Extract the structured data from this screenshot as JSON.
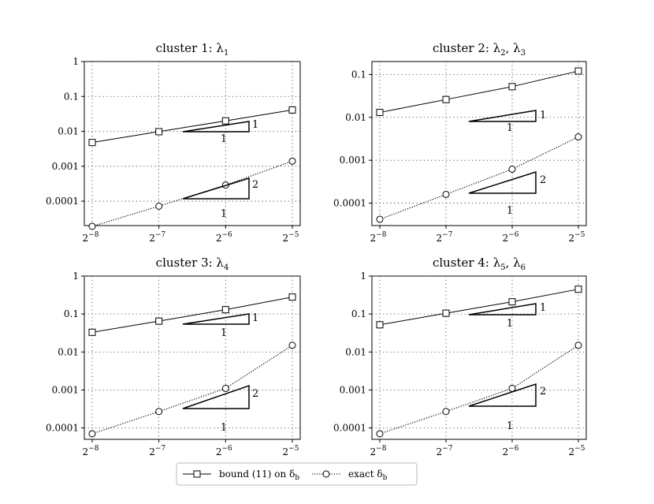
{
  "chart_data": [
    {
      "type": "line",
      "title": "cluster 1: λ",
      "title_sub": "1",
      "xscale": "log2",
      "yscale": "log",
      "x": [
        0.00390625,
        0.0078125,
        0.015625,
        0.03125
      ],
      "x_tick_labels": [
        {
          "base": "2",
          "exp": "−8"
        },
        {
          "base": "2",
          "exp": "−7"
        },
        {
          "base": "2",
          "exp": "−6"
        },
        {
          "base": "2",
          "exp": "−5"
        }
      ],
      "y_ticks": [
        0.0001,
        0.001,
        0.01,
        0.1,
        1
      ],
      "y_tick_labels": [
        "0.0001",
        "0.001",
        "0.01",
        "0.1",
        "1"
      ],
      "ylim": [
        2e-05,
        1
      ],
      "grid": true,
      "series": [
        {
          "values": [
            0.0048,
            0.0098,
            0.02,
            0.041
          ],
          "marker": "square",
          "style": "solid"
        },
        {
          "values": [
            1.9e-05,
            7.2e-05,
            0.00029,
            0.0014
          ],
          "marker": "circle",
          "style": "dotted"
        }
      ],
      "slope_triangles": [
        {
          "slope_label": "1",
          "run_label": "1"
        },
        {
          "slope_label": "2",
          "run_label": "1"
        }
      ]
    },
    {
      "type": "line",
      "title": "cluster 2: λ",
      "title_sub": "2",
      "title_tail": ", λ",
      "title_sub2": "3",
      "xscale": "log2",
      "yscale": "log",
      "x": [
        0.00390625,
        0.0078125,
        0.015625,
        0.03125
      ],
      "x_tick_labels": [
        {
          "base": "2",
          "exp": "−8"
        },
        {
          "base": "2",
          "exp": "−7"
        },
        {
          "base": "2",
          "exp": "−6"
        },
        {
          "base": "2",
          "exp": "−5"
        }
      ],
      "y_ticks": [
        0.0001,
        0.001,
        0.01,
        0.1
      ],
      "y_tick_labels": [
        "0.0001",
        "0.001",
        "0.01",
        "0.1"
      ],
      "ylim": [
        3e-05,
        0.2
      ],
      "grid": true,
      "series": [
        {
          "values": [
            0.013,
            0.026,
            0.052,
            0.12
          ],
          "marker": "square",
          "style": "solid"
        },
        {
          "values": [
            4.2e-05,
            0.00016,
            0.00062,
            0.0035
          ],
          "marker": "circle",
          "style": "dotted"
        }
      ],
      "slope_triangles": [
        {
          "slope_label": "1",
          "run_label": "1"
        },
        {
          "slope_label": "2",
          "run_label": "1"
        }
      ]
    },
    {
      "type": "line",
      "title": "cluster 3: λ",
      "title_sub": "4",
      "xscale": "log2",
      "yscale": "log",
      "x": [
        0.00390625,
        0.0078125,
        0.015625,
        0.03125
      ],
      "x_tick_labels": [
        {
          "base": "2",
          "exp": "−8"
        },
        {
          "base": "2",
          "exp": "−7"
        },
        {
          "base": "2",
          "exp": "−6"
        },
        {
          "base": "2",
          "exp": "−5"
        }
      ],
      "y_ticks": [
        0.0001,
        0.001,
        0.01,
        0.1,
        1
      ],
      "y_tick_labels": [
        "0.0001",
        "0.001",
        "0.01",
        "0.1",
        "1"
      ],
      "ylim": [
        5e-05,
        1
      ],
      "grid": true,
      "series": [
        {
          "values": [
            0.033,
            0.065,
            0.13,
            0.28
          ],
          "marker": "square",
          "style": "solid"
        },
        {
          "values": [
            7e-05,
            0.00027,
            0.0011,
            0.015
          ],
          "marker": "circle",
          "style": "dotted"
        }
      ],
      "slope_triangles": [
        {
          "slope_label": "1",
          "run_label": "1"
        },
        {
          "slope_label": "2",
          "run_label": "1"
        }
      ]
    },
    {
      "type": "line",
      "title": "cluster 4: λ",
      "title_sub": "5",
      "title_tail": ", λ",
      "title_sub2": "6",
      "xscale": "log2",
      "yscale": "log",
      "x": [
        0.00390625,
        0.0078125,
        0.015625,
        0.03125
      ],
      "x_tick_labels": [
        {
          "base": "2",
          "exp": "−8"
        },
        {
          "base": "2",
          "exp": "−7"
        },
        {
          "base": "2",
          "exp": "−6"
        },
        {
          "base": "2",
          "exp": "−5"
        }
      ],
      "y_ticks": [
        0.0001,
        0.001,
        0.01,
        0.1,
        1
      ],
      "y_tick_labels": [
        "0.0001",
        "0.001",
        "0.01",
        "0.1",
        "1"
      ],
      "ylim": [
        5e-05,
        1
      ],
      "grid": true,
      "series": [
        {
          "values": [
            0.052,
            0.105,
            0.21,
            0.45
          ],
          "marker": "square",
          "style": "solid"
        },
        {
          "values": [
            7e-05,
            0.00027,
            0.0011,
            0.015
          ],
          "marker": "circle",
          "style": "dotted"
        }
      ],
      "slope_triangles": [
        {
          "slope_label": "1",
          "run_label": "1"
        },
        {
          "slope_label": "2",
          "run_label": "1"
        }
      ]
    }
  ],
  "legend": {
    "placement": "bottom-center",
    "entries": [
      {
        "label": "bound (11) on δ",
        "sub": "b",
        "marker": "square",
        "style": "solid"
      },
      {
        "label": "exact δ",
        "sub": "b",
        "marker": "circle",
        "style": "dotted"
      }
    ]
  },
  "colors": {
    "line": "#000000",
    "grid": "#333333",
    "background": "#ffffff"
  }
}
